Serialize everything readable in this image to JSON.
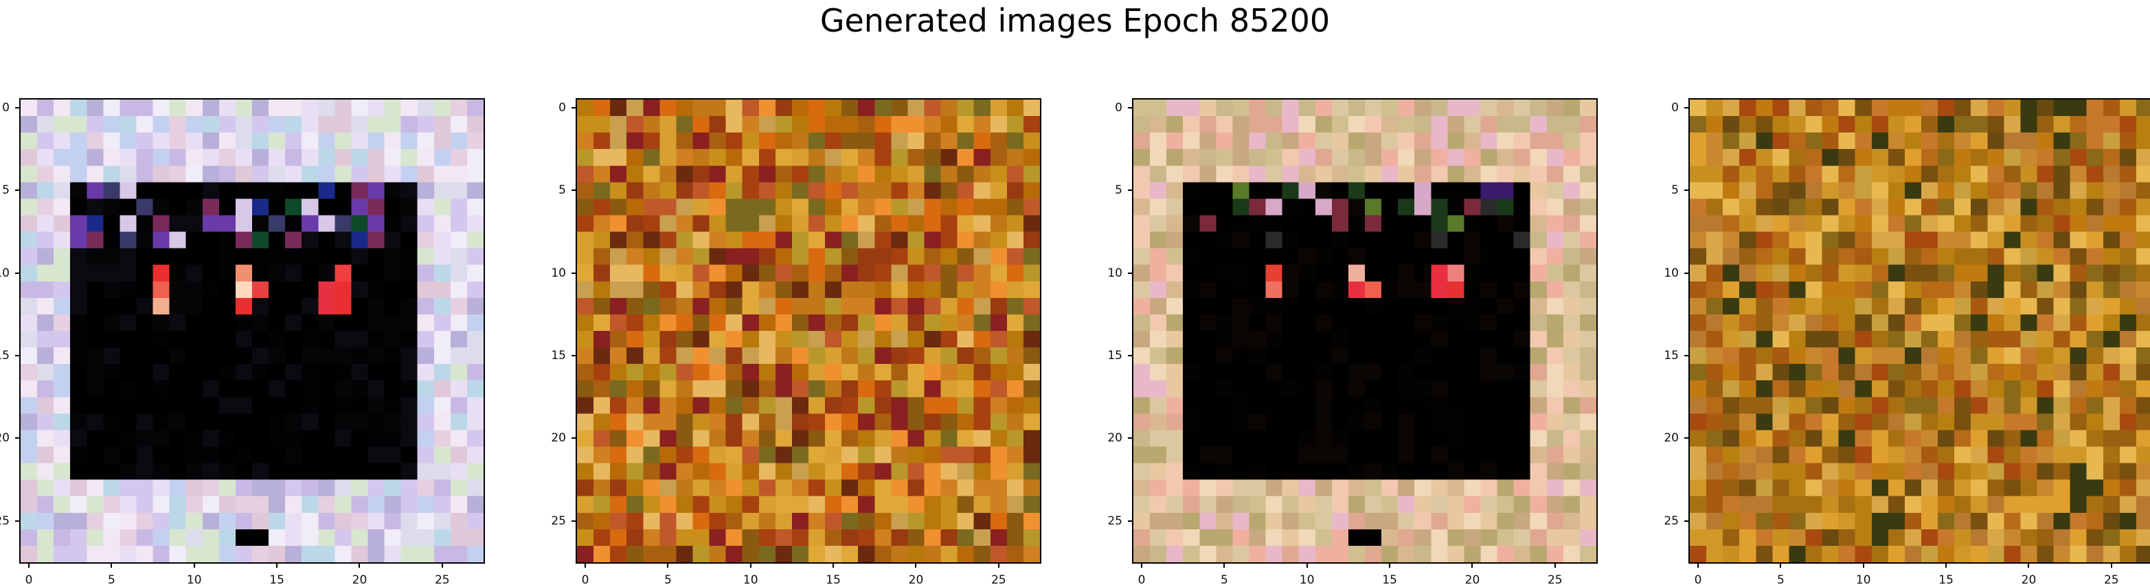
{
  "figure": {
    "title": "Generated images Epoch 85200"
  },
  "chart_data": [
    {
      "type": "heatmap",
      "panel": 1,
      "grid": "28x28 RGB",
      "pattern": "framed",
      "frame_palette": [
        "#e8dff5",
        "#d4c7ee",
        "#c8b9e4",
        "#f0ecf8",
        "#bcd8e8",
        "#d8e6d0",
        "#e6cfe0",
        "#c4d0f0",
        "#f2e8f4",
        "#b8b0d8",
        "#dcdcec",
        "#e0c8d8"
      ],
      "inner_palette": [
        "#000000",
        "#050508",
        "#0a0a10",
        "#000000",
        "#000000",
        "#020204"
      ],
      "accent_palette": [
        "#1a2a8a",
        "#0e4a2a",
        "#7a2a5a",
        "#3a3a6a",
        "#d8c8e8",
        "#6a3aa8"
      ],
      "marks": [
        [
          8,
          10,
          "#e83030"
        ],
        [
          8,
          11,
          "#f06050"
        ],
        [
          8,
          12,
          "#f0b090"
        ],
        [
          13,
          11,
          "#ffd8c0"
        ],
        [
          13,
          10,
          "#f09070"
        ],
        [
          13,
          12,
          "#e83030"
        ],
        [
          14,
          11,
          "#e84040"
        ],
        [
          18,
          11,
          "#e83040"
        ],
        [
          18,
          12,
          "#e83040"
        ],
        [
          19,
          10,
          "#f04040"
        ],
        [
          19,
          11,
          "#e83030"
        ],
        [
          19,
          12,
          "#e83030"
        ]
      ],
      "x_ticks": [
        0,
        5,
        10,
        15,
        20,
        25
      ],
      "y_ticks": [
        0,
        5,
        10,
        15,
        20,
        25
      ]
    },
    {
      "type": "heatmap",
      "panel": 2,
      "grid": "28x28 RGB",
      "pattern": "noise",
      "noise_palette": [
        "#c8901a",
        "#b8780a",
        "#d8a030",
        "#a86010",
        "#e0a838",
        "#c07818",
        "#8a5a10",
        "#b86a08",
        "#d08020",
        "#9a3a10",
        "#c8a050",
        "#7a6a20",
        "#e8b860",
        "#a84010",
        "#6a2a10",
        "#b8982a",
        "#d86a10",
        "#f09030",
        "#8a2020",
        "#c0582a"
      ],
      "x_ticks": [
        0,
        5,
        10,
        15,
        20,
        25
      ],
      "y_ticks": [
        0,
        5,
        10,
        15,
        20,
        25
      ]
    },
    {
      "type": "heatmap",
      "panel": 3,
      "grid": "28x28 RGB",
      "pattern": "framed",
      "frame_palette": [
        "#e8c8a0",
        "#d8b890",
        "#f0d8b8",
        "#c8b88a",
        "#e0a890",
        "#d0c090",
        "#f2c8b0",
        "#b8a870",
        "#e8b8c8",
        "#c8a880",
        "#dcc8a0",
        "#f0b0a0"
      ],
      "inner_palette": [
        "#000000",
        "#050302",
        "#0a0604",
        "#000000",
        "#020100",
        "#000000"
      ],
      "accent_palette": [
        "#3a1a6a",
        "#1a3a1a",
        "#7a2a3a",
        "#5a7a2a",
        "#d8a8c8",
        "#2a2a2a"
      ],
      "marks": [
        [
          8,
          10,
          "#e84030"
        ],
        [
          8,
          11,
          "#f07060"
        ],
        [
          13,
          10,
          "#f0b0a0"
        ],
        [
          13,
          11,
          "#e83040"
        ],
        [
          14,
          11,
          "#f06050"
        ],
        [
          18,
          10,
          "#e83040"
        ],
        [
          18,
          11,
          "#e83040"
        ],
        [
          19,
          10,
          "#f08080"
        ],
        [
          19,
          11,
          "#e83030"
        ]
      ],
      "x_ticks": [
        0,
        5,
        10,
        15,
        20,
        25
      ],
      "y_ticks": [
        0,
        5,
        10,
        15,
        20,
        25
      ]
    },
    {
      "type": "heatmap",
      "panel": 4,
      "grid": "28x28 RGB",
      "pattern": "noise",
      "noise_palette": [
        "#b88010",
        "#c89020",
        "#a87010",
        "#d09828",
        "#c07a10",
        "#986010",
        "#b86a18",
        "#e0a030",
        "#a85a10",
        "#8a6a18",
        "#c8a040",
        "#7a5010",
        "#d8a848",
        "#b87a30",
        "#6a4a10",
        "#c88830",
        "#a84a10",
        "#e8b850",
        "#3a3a10",
        "#c8782a"
      ],
      "x_ticks": [
        0,
        5,
        10,
        15,
        20,
        25
      ],
      "y_ticks": [
        0,
        5,
        10,
        15,
        20,
        25
      ]
    }
  ]
}
